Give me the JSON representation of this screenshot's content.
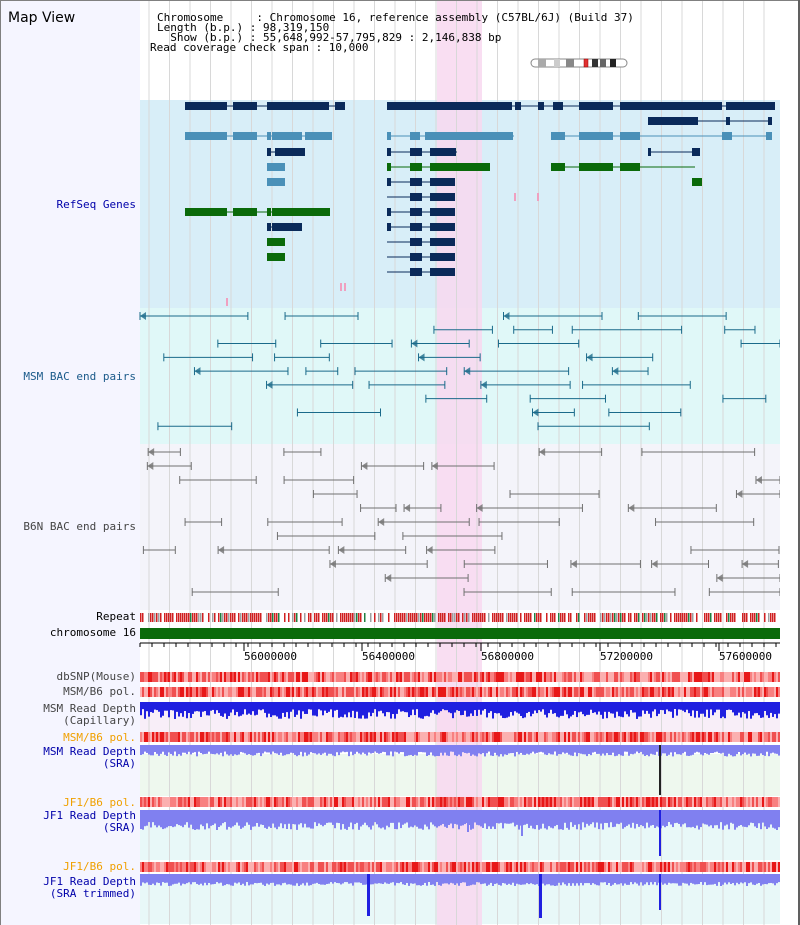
{
  "app": {
    "title": "Map View"
  },
  "header": {
    "lines": [
      "Chromosome     : Chromosome 16, reference assembly (C57BL/6J) (Build 37)",
      "Length (b.p.) : 98,319,150",
      "  Show (b.p.) : 55,648,992-57,795,829 : 2,146,838 bp",
      "Read coverage check span : 10,000"
    ]
  },
  "tracks": {
    "refseq": {
      "label": "RefSeq Genes"
    },
    "msm_bac": {
      "label": "MSM BAC end pairs"
    },
    "b6n_bac": {
      "label": "B6N BAC end pairs"
    },
    "repeat": {
      "label": "Repeat"
    },
    "chromosome": {
      "label": "chromosome 16"
    },
    "dbsnp": {
      "label": "dbSNP(Mouse)"
    },
    "msm_b6_pol": {
      "label": "MSM/B6 pol."
    },
    "msm_read_depth_cap": {
      "label": "MSM Read Depth\n(Capillary)"
    },
    "msm_b6_pol_2": {
      "label": "MSM/B6 pol."
    },
    "msm_read_depth_sra": {
      "label": "MSM Read Depth\n(SRA)"
    },
    "jf1_b6_pol": {
      "label": "JF1/B6 pol."
    },
    "jf1_read_depth_sra": {
      "label": "JF1 Read Depth\n(SRA)"
    },
    "jf1_b6_pol_2": {
      "label": "JF1/B6 pol."
    },
    "jf1_read_depth_trim": {
      "label": "JF1 Read Depth\n(SRA trimmed)"
    }
  },
  "axis": {
    "ticks": [
      "56000000",
      "56400000",
      "56800000",
      "57200000",
      "57600000"
    ]
  },
  "colors": {
    "highlight": "#f8d8f0",
    "refseq_bg": "#d8eef8",
    "msm_bg": "#e0f8f8",
    "b6n_bg": "#f4f4fa",
    "gene_dark": "#0a2a5a",
    "gene_mid": "#4a90b8",
    "gene_green": "#0a6a0a",
    "msm_bac": "#1a6a8a",
    "b6n_bac": "#707070",
    "chrom_bar": "#0a6a0a",
    "depth_blue": "#2020e0",
    "depth_light": "#8080f0",
    "pol_red": "#f04040"
  }
}
